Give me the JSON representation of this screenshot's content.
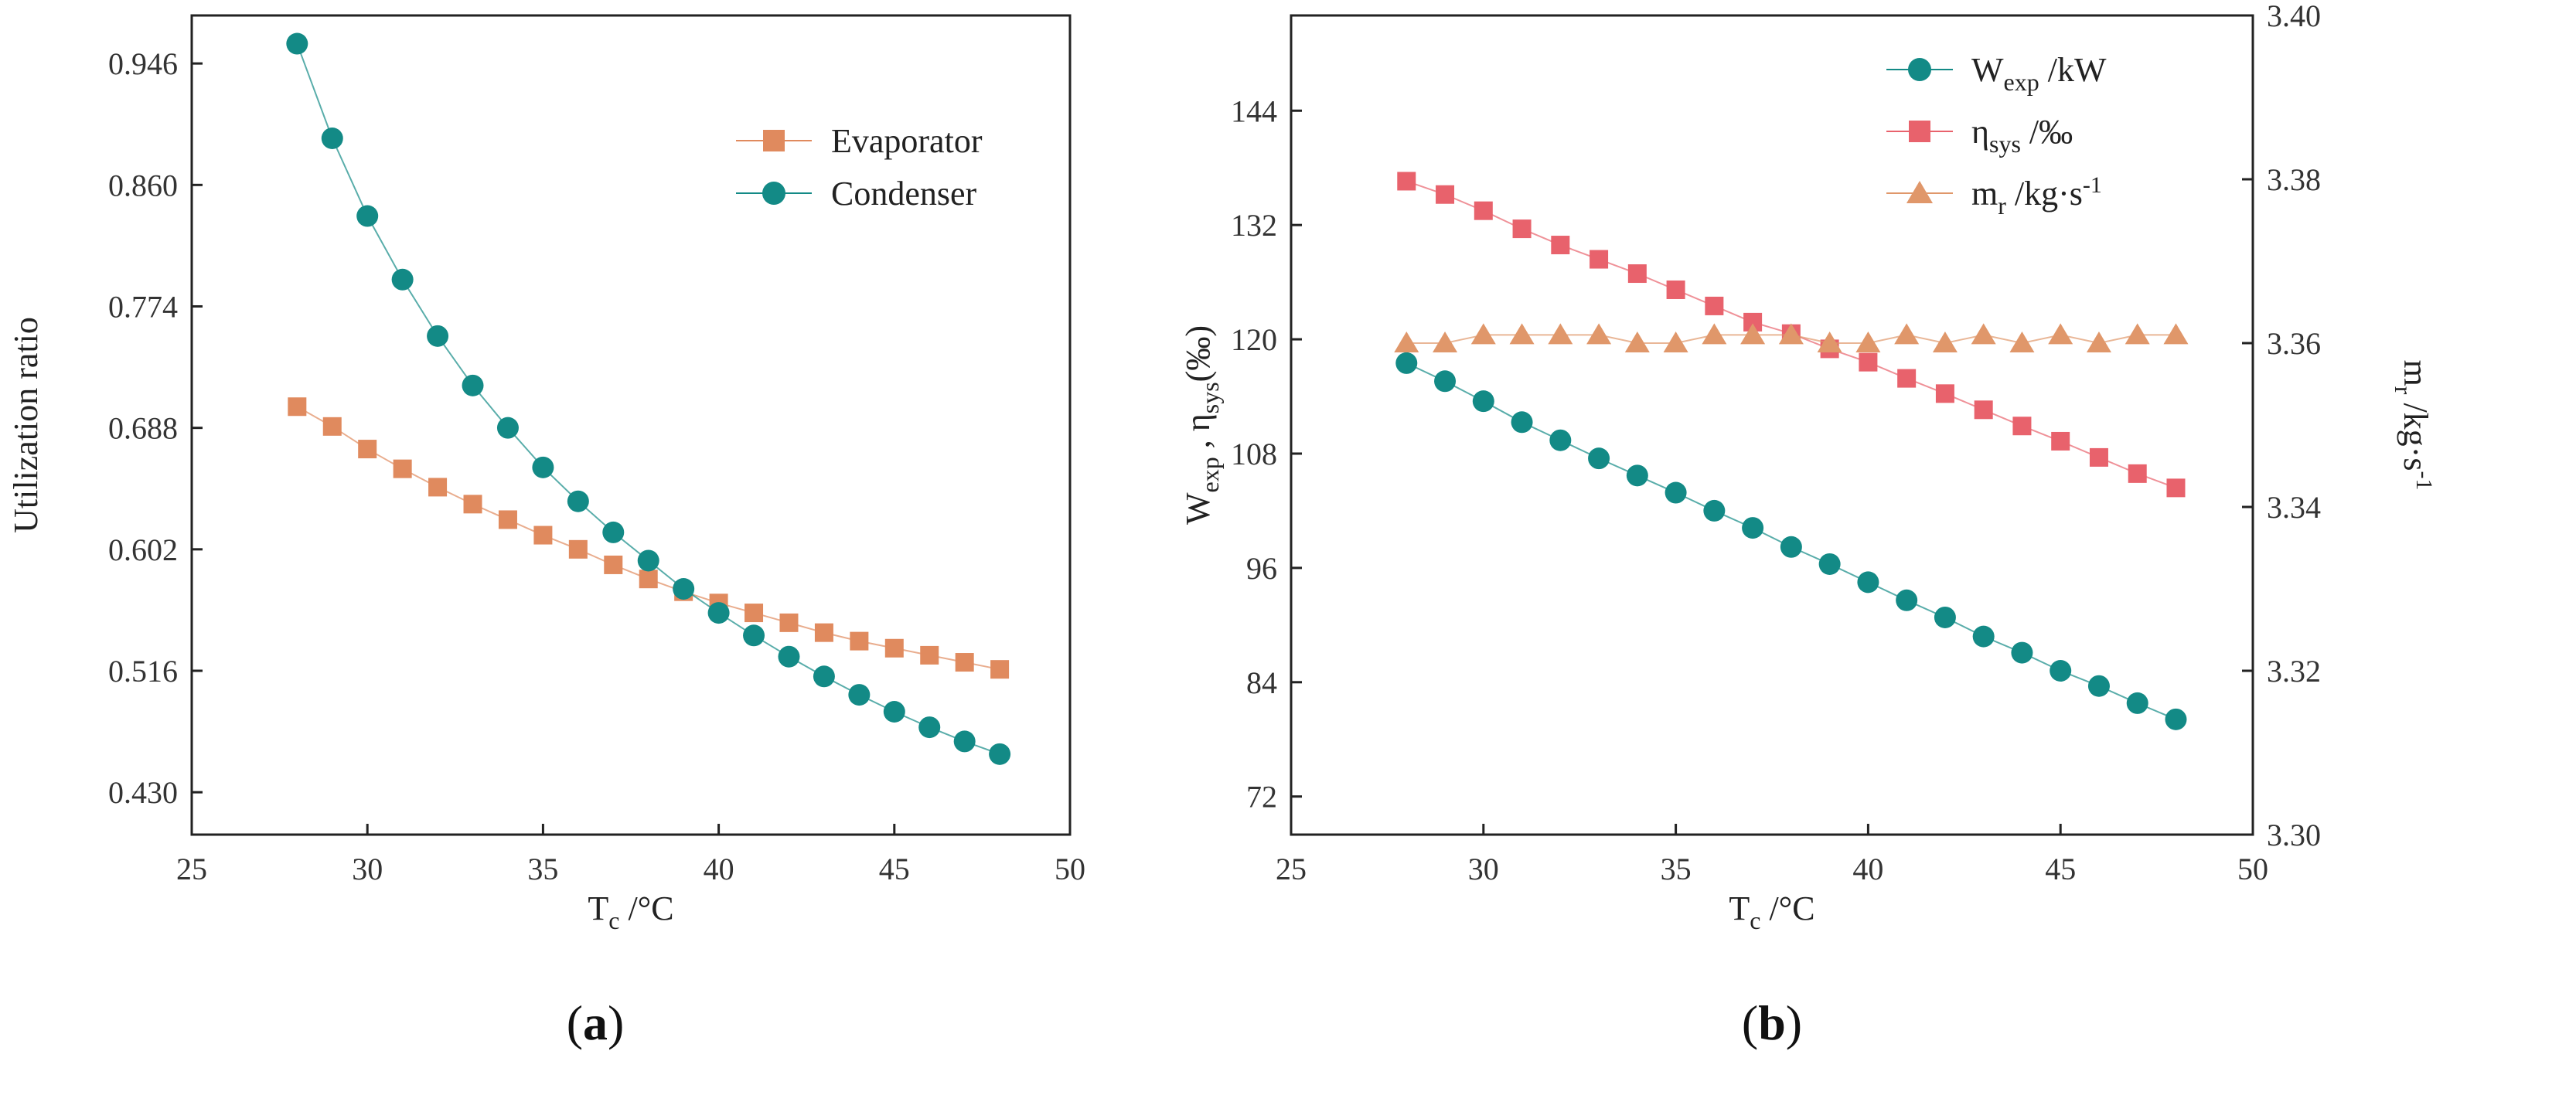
{
  "chart_data": [
    {
      "type": "line",
      "panel": "a",
      "caption": "(a)",
      "caption_parts": {
        "open": "(",
        "letter": "a",
        "close": ")"
      },
      "x": [
        28,
        29,
        30,
        31,
        32,
        33,
        34,
        35,
        36,
        37,
        38,
        39,
        40,
        41,
        42,
        43,
        44,
        45,
        46,
        47,
        48
      ],
      "xlim": [
        25,
        50
      ],
      "xticks": [
        25,
        30,
        35,
        40,
        45,
        50
      ],
      "xlabel": {
        "main": "T",
        "sub": "c",
        "rest": " /°C"
      },
      "ylabel": "Utilization ratio",
      "ylim": [
        0.4,
        0.98
      ],
      "yticks": [
        "0.430",
        "0.516",
        "0.602",
        "0.688",
        "0.774",
        "0.860",
        "0.946"
      ],
      "series": [
        {
          "name": "Evaporator",
          "color": "#e08a5e",
          "marker": "square",
          "values": [
            0.703,
            0.689,
            0.673,
            0.659,
            0.646,
            0.634,
            0.623,
            0.612,
            0.602,
            0.591,
            0.581,
            0.572,
            0.564,
            0.557,
            0.55,
            0.543,
            0.537,
            0.532,
            0.527,
            0.522,
            0.517
          ]
        },
        {
          "name": "Condenser",
          "color": "#138a86",
          "marker": "circle",
          "values": [
            0.96,
            0.893,
            0.838,
            0.793,
            0.753,
            0.718,
            0.688,
            0.66,
            0.636,
            0.614,
            0.594,
            0.574,
            0.557,
            0.541,
            0.526,
            0.512,
            0.499,
            0.487,
            0.476,
            0.466,
            0.457
          ]
        }
      ]
    },
    {
      "type": "line",
      "panel": "b",
      "caption": "(b)",
      "caption_parts": {
        "open": "(",
        "letter": "b",
        "close": ")"
      },
      "x": [
        28,
        29,
        30,
        31,
        32,
        33,
        34,
        35,
        36,
        37,
        38,
        39,
        40,
        41,
        42,
        43,
        44,
        45,
        46,
        47,
        48
      ],
      "xlim": [
        25,
        50
      ],
      "xticks": [
        25,
        30,
        35,
        40,
        45,
        50
      ],
      "xlabel": {
        "main": "T",
        "sub": "c",
        "rest": " /°C"
      },
      "ylabel_left": {
        "w": "W",
        "w_sub": "exp",
        "sep": " , ",
        "eta": "η",
        "eta_sub": "sys",
        "rest": "(‰)"
      },
      "ylabel_right": {
        "m": "m",
        "m_sub": "r",
        "rest": " /kg·s",
        "sup": "-1"
      },
      "ylim_left": [
        68,
        154
      ],
      "yticks_left": [
        72,
        84,
        96,
        108,
        120,
        132,
        144
      ],
      "ylim_right": [
        3.3,
        3.4
      ],
      "yticks_right": [
        "3.30",
        "3.32",
        "3.34",
        "3.36",
        "3.38",
        "3.40"
      ],
      "series": [
        {
          "name": "W_exp /kW",
          "axis": "left",
          "color": "#138a86",
          "marker": "circle",
          "legend": {
            "main": "W",
            "sub": "exp",
            "rest": " /kW",
            "sup": ""
          },
          "values": [
            117.5,
            115.6,
            113.5,
            111.3,
            109.4,
            107.5,
            105.7,
            103.9,
            102.0,
            100.2,
            98.2,
            96.4,
            94.5,
            92.6,
            90.8,
            88.8,
            87.1,
            85.2,
            83.6,
            81.8,
            80.1
          ]
        },
        {
          "name": "η_sys /‰",
          "axis": "left",
          "color": "#e8626c",
          "marker": "square",
          "legend": {
            "main": "η",
            "sub": "sys",
            "rest": "   /‰",
            "sup": ""
          },
          "values": [
            136.6,
            135.2,
            133.5,
            131.6,
            129.9,
            128.4,
            126.9,
            125.2,
            123.5,
            121.8,
            120.6,
            119.0,
            117.6,
            115.9,
            114.3,
            112.6,
            110.9,
            109.3,
            107.6,
            105.9,
            104.4
          ]
        },
        {
          "name": "m_r /kg·s-1",
          "axis": "right",
          "color": "#e0976a",
          "marker": "triangle",
          "legend": {
            "main": "m",
            "sub": "r",
            "rest": "   /kg·s",
            "sup": "-1"
          },
          "values": [
            3.36,
            3.36,
            3.361,
            3.361,
            3.361,
            3.361,
            3.36,
            3.36,
            3.361,
            3.361,
            3.361,
            3.36,
            3.36,
            3.361,
            3.36,
            3.361,
            3.36,
            3.361,
            3.36,
            3.361,
            3.361
          ]
        }
      ]
    }
  ]
}
